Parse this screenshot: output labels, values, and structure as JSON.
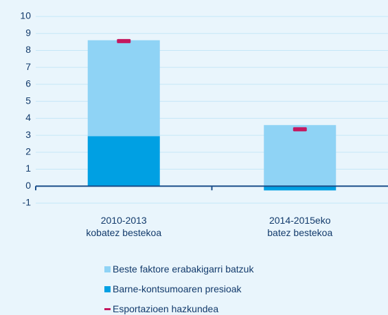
{
  "chart_data": {
    "type": "stacked_bar",
    "categories": [
      "2010-2013\nkobatez bestekoa",
      "2014-2015eko\nbatez bestekoa"
    ],
    "series": [
      {
        "name": "Beste faktore erabakigarri batzuk",
        "color": "#8fd3f5",
        "values": [
          5.65,
          3.6
        ]
      },
      {
        "name": "Barne-kontsumoaren presioak",
        "color": "#00a0e3",
        "values": [
          2.95,
          -0.25
        ]
      },
      {
        "name": "Esportazioen hazkundea",
        "color": "#c4185f",
        "type": "marker",
        "values": [
          8.55,
          3.35
        ]
      }
    ],
    "ylim": [
      -1,
      10
    ],
    "yticks": [
      -1,
      0,
      1,
      2,
      3,
      4,
      5,
      6,
      7,
      8,
      9,
      10
    ],
    "grid": true
  }
}
